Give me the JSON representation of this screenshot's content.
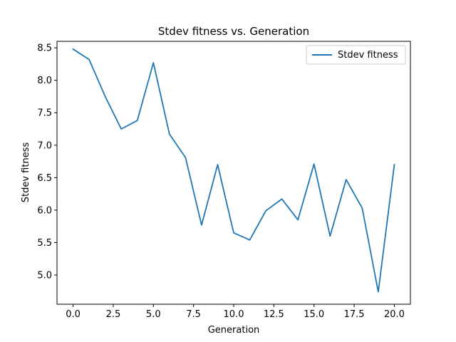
{
  "chart_data": {
    "type": "line",
    "title": "Stdev fitness vs. Generation",
    "xlabel": "Generation",
    "ylabel": "Stdev fitness",
    "xlim": [
      -1.0,
      21.0
    ],
    "ylim": [
      4.55,
      8.6
    ],
    "x_ticks": [
      0.0,
      2.5,
      5.0,
      7.5,
      10.0,
      12.5,
      15.0,
      17.5,
      20.0
    ],
    "x_tick_labels": [
      "0.0",
      "2.5",
      "5.0",
      "7.5",
      "10.0",
      "12.5",
      "15.0",
      "17.5",
      "20.0"
    ],
    "y_ticks": [
      5.0,
      5.5,
      6.0,
      6.5,
      7.0,
      7.5,
      8.0,
      8.5
    ],
    "y_tick_labels": [
      "5.0",
      "5.5",
      "6.0",
      "6.5",
      "7.0",
      "7.5",
      "8.0",
      "8.5"
    ],
    "grid": false,
    "legend_position": "top-right",
    "series": [
      {
        "name": "Stdev fitness",
        "color": "#1f77b4",
        "x": [
          0,
          1,
          2,
          3,
          4,
          5,
          6,
          7,
          8,
          9,
          10,
          11,
          12,
          13,
          14,
          15,
          16,
          17,
          18,
          19,
          20
        ],
        "y": [
          8.48,
          8.32,
          7.75,
          7.25,
          7.38,
          8.27,
          7.17,
          6.81,
          5.77,
          6.7,
          5.65,
          5.54,
          5.99,
          6.17,
          5.85,
          6.71,
          5.6,
          6.47,
          6.03,
          4.74,
          6.7
        ]
      }
    ]
  }
}
